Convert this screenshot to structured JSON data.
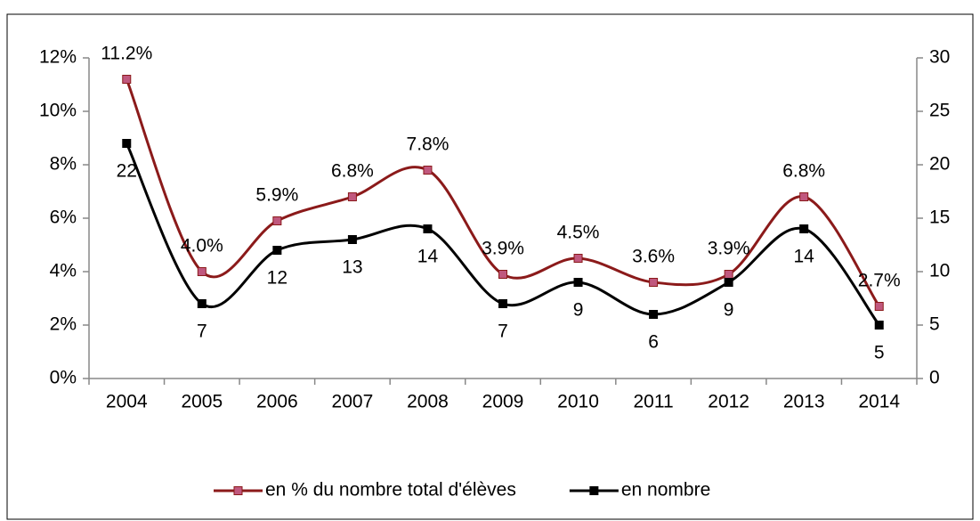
{
  "chart_data": {
    "type": "line",
    "categories": [
      "2004",
      "2005",
      "2006",
      "2007",
      "2008",
      "2009",
      "2010",
      "2011",
      "2012",
      "2013",
      "2014"
    ],
    "series": [
      {
        "name": "en % du nombre total d'élèves",
        "color": "#8b1a1a",
        "marker_color": "#c0587e",
        "values": [
          11.2,
          4.0,
          5.9,
          6.8,
          7.8,
          3.9,
          4.5,
          3.6,
          3.9,
          6.8,
          2.7
        ],
        "value_labels": [
          "11.2%",
          "4.0%",
          "5.9%",
          "6.8%",
          "7.8%",
          "3.9%",
          "4.5%",
          "3.6%",
          "3.9%",
          "6.8%",
          "2.7%"
        ]
      },
      {
        "name": "en nombre",
        "color": "#000000",
        "marker_color": "#000000",
        "axis": "y2",
        "values": [
          22,
          7,
          12,
          13,
          14,
          7,
          9,
          6,
          9,
          14,
          5
        ]
      }
    ],
    "ylim": [
      0,
      12
    ],
    "yticks": [
      {
        "value": 0,
        "label": "0%"
      },
      {
        "value": 2,
        "label": "2%"
      },
      {
        "value": 4,
        "label": "4%"
      },
      {
        "value": 6,
        "label": "6%"
      },
      {
        "value": 8,
        "label": "8%"
      },
      {
        "value": 10,
        "label": "10%"
      },
      {
        "value": 12,
        "label": "12%"
      }
    ],
    "y2lim": [
      0,
      30
    ],
    "y2ticks": [
      0,
      5,
      10,
      15,
      20,
      25,
      30
    ],
    "legend": "bottom"
  }
}
